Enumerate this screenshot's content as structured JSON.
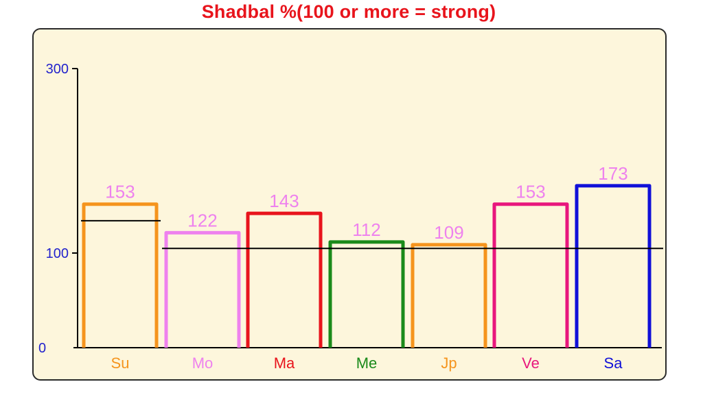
{
  "chart_data": {
    "type": "bar",
    "title": "Shadbal %(100 or more = strong)",
    "categories": [
      "Su",
      "Mo",
      "Ma",
      "Me",
      "Jp",
      "Ve",
      "Sa"
    ],
    "values": [
      153,
      122,
      143,
      112,
      109,
      153,
      173
    ],
    "thresholds": [
      135,
      105
    ],
    "colors": [
      "#f5941d",
      "#ee82ee",
      "#e8141c",
      "#1a8a1a",
      "#f5941d",
      "#e8177d",
      "#1010d8"
    ],
    "value_label_color": "#ee82ee",
    "axis_color": "#2222cc",
    "y_ticks": [
      0,
      100,
      300
    ],
    "ylim": [
      0,
      300
    ],
    "xlabel": "",
    "ylabel": "",
    "grid": false
  }
}
